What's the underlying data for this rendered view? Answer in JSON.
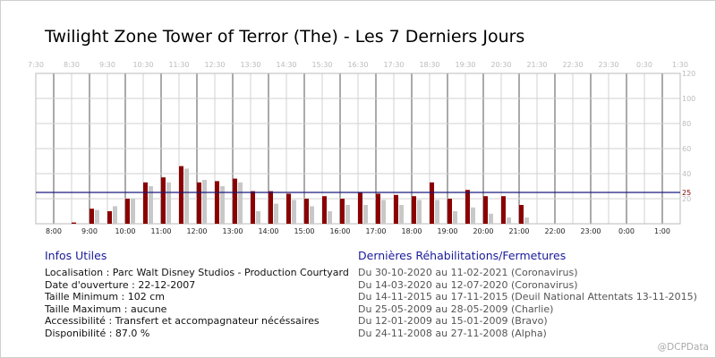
{
  "title": "Twilight Zone Tower of Terror (The) - Les 7 Derniers Jours",
  "chart_data": {
    "type": "bar",
    "top_ticks": [
      "7:30",
      "8:30",
      "9:30",
      "10:30",
      "11:30",
      "12:30",
      "13:30",
      "14:30",
      "15:30",
      "16:30",
      "17:30",
      "18:30",
      "19:30",
      "20:30",
      "21:30",
      "22:30",
      "23:30",
      "0:30",
      "1:30"
    ],
    "bottom_ticks": [
      "8:00",
      "9:00",
      "10:00",
      "11:00",
      "12:00",
      "13:00",
      "14:00",
      "15:00",
      "16:00",
      "17:00",
      "18:00",
      "19:00",
      "20:00",
      "21:00",
      "22:00",
      "23:00",
      "0:00",
      "1:00"
    ],
    "y_ticks": [
      20,
      40,
      60,
      80,
      100,
      120
    ],
    "ylim": [
      0,
      120
    ],
    "reference": {
      "value": 25,
      "label": "25",
      "color": "#1a1a7e"
    },
    "series": [
      {
        "color": "#8b0000",
        "x": [
          "8:30",
          "9:00",
          "9:30",
          "10:00",
          "10:30",
          "11:00",
          "11:30",
          "12:00",
          "12:30",
          "13:00",
          "13:30",
          "14:00",
          "14:30",
          "15:00",
          "15:30",
          "16:00",
          "16:30",
          "17:00",
          "17:30",
          "18:00",
          "18:30",
          "19:00",
          "19:30",
          "20:00",
          "20:30",
          "21:00"
        ],
        "values": [
          1,
          12,
          10,
          20,
          33,
          37,
          46,
          33,
          34,
          36,
          26,
          26,
          24,
          20,
          22,
          20,
          25,
          24,
          23,
          22,
          33,
          20,
          27,
          22,
          22,
          15
        ]
      },
      {
        "color": "#c8c8c8",
        "x": [
          "9:00",
          "9:30",
          "10:00",
          "10:30",
          "11:00",
          "11:30",
          "12:00",
          "12:30",
          "13:00",
          "13:30",
          "14:00",
          "14:30",
          "15:00",
          "15:30",
          "16:00",
          "16:30",
          "17:00",
          "17:30",
          "18:00",
          "18:30",
          "19:00",
          "19:30",
          "20:00",
          "20:30",
          "21:00"
        ],
        "values": [
          11,
          14,
          20,
          30,
          33,
          44,
          35,
          30,
          33,
          10,
          16,
          19,
          14,
          10,
          15,
          15,
          19,
          15,
          19,
          19,
          10,
          13,
          8,
          5,
          5
        ]
      }
    ]
  },
  "infos": {
    "heading": "Infos Utiles",
    "lines": [
      "Localisation : Parc Walt Disney Studios - Production Courtyard",
      "Date d'ouverture : 22-12-2007",
      "Taille Minimum : 102 cm",
      "Taille Maximum : aucune",
      "Accessibilité : Transfert et accompagnateur nécéssaires",
      "Disponibilité : 87.0 %"
    ]
  },
  "rehab": {
    "heading": "Dernières Réhabilitations/Fermetures",
    "lines": [
      "Du 30-10-2020 au 11-02-2021 (Coronavirus)",
      "Du 14-03-2020 au 12-07-2020 (Coronavirus)",
      "Du 14-11-2015 au 17-11-2015 (Deuil National Attentats 13-11-2015)",
      "Du 25-05-2009 au 28-05-2009 (Charlie)",
      "Du 12-01-2009 au 15-01-2009 (Bravo)",
      "Du 24-11-2008 au 27-11-2008 (Alpha)"
    ]
  },
  "credit": "@DCPData"
}
